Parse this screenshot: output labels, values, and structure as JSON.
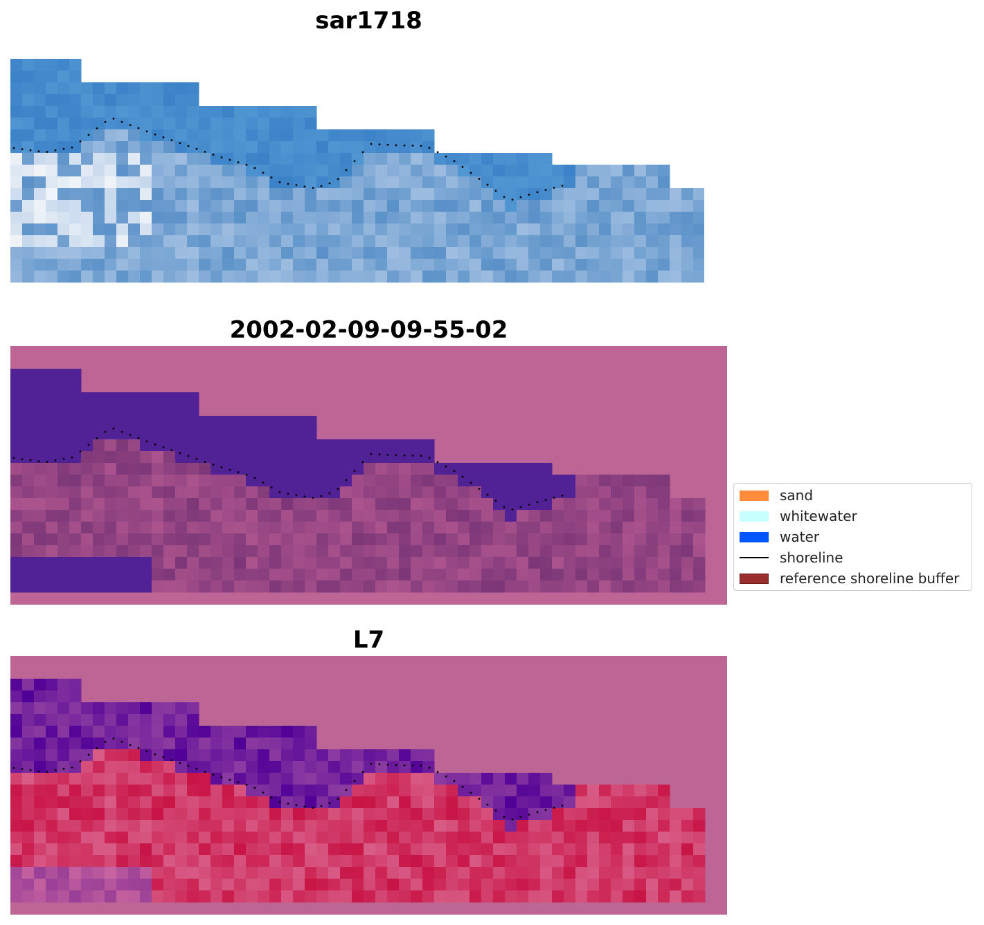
{
  "panels": [
    {
      "title": "sar1718",
      "kind": "rgb"
    },
    {
      "title": "2002-02-09-09-55-02",
      "kind": "classified"
    },
    {
      "title": "L7",
      "kind": "index"
    }
  ],
  "legend": {
    "items": [
      {
        "label": "sand",
        "color": "#ff8c3c",
        "kind": "patch"
      },
      {
        "label": "whitewater",
        "color": "#c8ffff",
        "kind": "patch"
      },
      {
        "label": "water",
        "color": "#0055ff",
        "kind": "patch"
      },
      {
        "label": "shoreline",
        "color": "#000000",
        "kind": "line"
      },
      {
        "label": "reference shoreline buffer",
        "color": "#992e2e",
        "kind": "patch"
      }
    ]
  },
  "colors": {
    "buffer_overlay": "#bd6695",
    "water_class": "#502296",
    "shoreline_dots": "#000000"
  }
}
